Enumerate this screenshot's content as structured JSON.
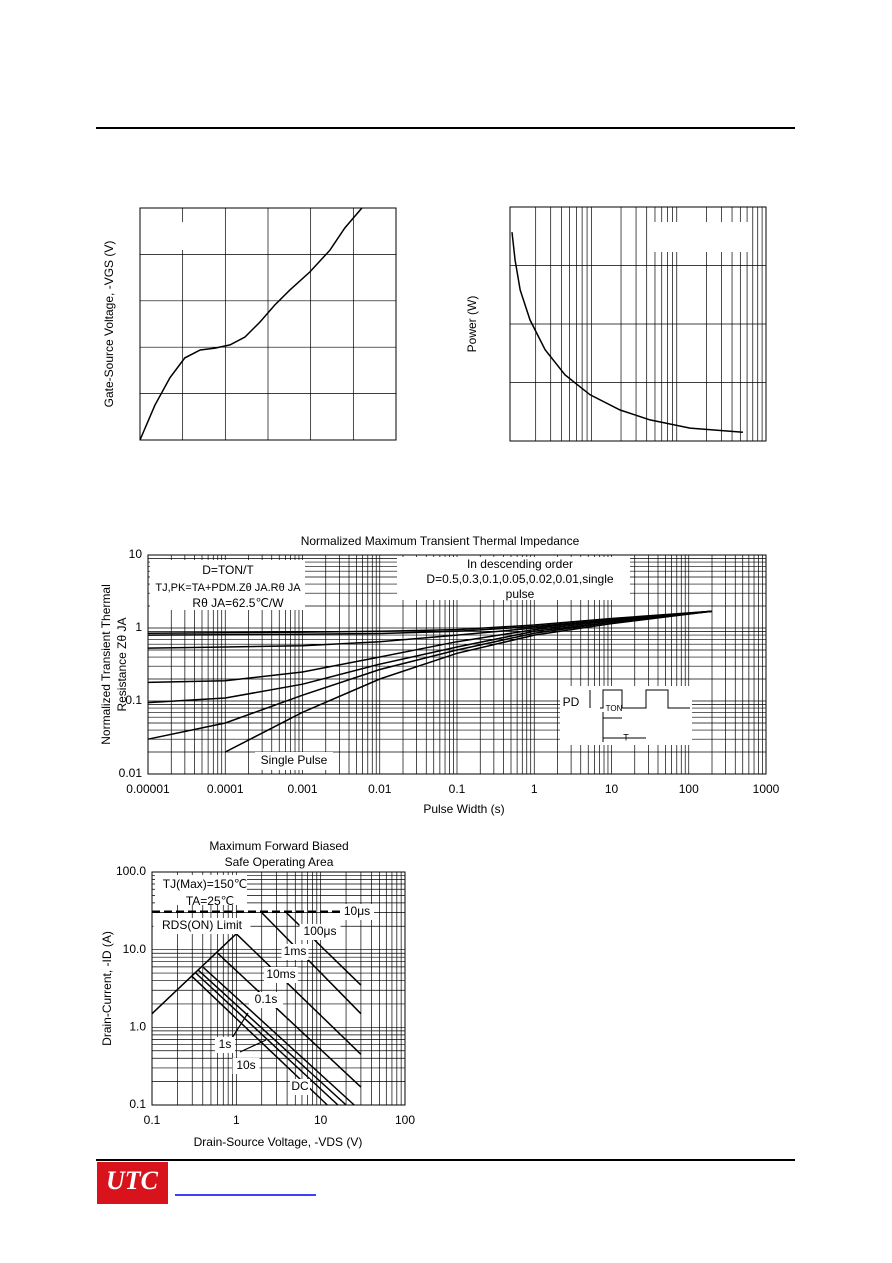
{
  "chart_data": [
    {
      "type": "line",
      "ylabel": "Gate-Source Voltage, -VGS (V)",
      "xlim": [
        0,
        6
      ],
      "ylim": [
        0,
        5
      ],
      "grid": true,
      "color": "#000000",
      "x": [
        0,
        0.35,
        0.7,
        1.05,
        1.41,
        1.76,
        2.11,
        2.46,
        2.81,
        3.16,
        3.51,
        3.98,
        4.45,
        4.8,
        5.2
      ],
      "values": [
        0,
        0.75,
        1.34,
        1.77,
        1.94,
        1.98,
        2.05,
        2.22,
        2.54,
        2.91,
        3.23,
        3.62,
        4.09,
        4.57,
        5
      ]
    },
    {
      "type": "line",
      "ylabel": "Power (W)",
      "xlim": [
        0,
        1
      ],
      "ylim": [
        0,
        4
      ],
      "grid": true,
      "color": "#000000",
      "x": [
        0.008,
        0.02,
        0.04,
        0.078,
        0.137,
        0.215,
        0.313,
        0.43,
        0.547,
        0.703,
        0.91
      ],
      "values": [
        3.57,
        3.09,
        2.58,
        2.07,
        1.56,
        1.13,
        0.79,
        0.53,
        0.36,
        0.22,
        0.15
      ]
    },
    {
      "type": "line",
      "title": "Normalized Maximum Transient Thermal Impedance",
      "xlabel": "Pulse Width (s)",
      "ylabel": [
        "Normalized Transient Thermal",
        "Resistance Zθ JA"
      ],
      "xscale": "log",
      "yscale": "log",
      "xlim": [
        1e-05,
        1000
      ],
      "ylim": [
        0.01,
        10
      ],
      "xticks": [
        1e-05,
        0.0001,
        0.001,
        0.01,
        0.1,
        1,
        10,
        100,
        1000
      ],
      "yticks": [
        0.01,
        0.1,
        1,
        10
      ],
      "grid": true,
      "x": [
        1e-05,
        0.0001,
        0.001,
        0.01,
        0.1,
        1,
        10,
        200
      ],
      "series": [
        {
          "color": "#000000",
          "values": [
            0.85,
            0.86,
            0.88,
            0.9,
            0.95,
            1.1,
            1.35,
            1.7
          ]
        },
        {
          "color": "#000000",
          "values": [
            0.8,
            0.81,
            0.82,
            0.84,
            0.9,
            1.05,
            1.3,
            1.7
          ]
        },
        {
          "color": "#000000",
          "values": [
            0.53,
            0.55,
            0.57,
            0.65,
            0.8,
            1.0,
            1.3,
            1.7
          ]
        },
        {
          "color": "#000000",
          "values": [
            0.18,
            0.19,
            0.25,
            0.4,
            0.65,
            0.95,
            1.25,
            1.7
          ]
        },
        {
          "color": "#000000",
          "values": [
            0.095,
            0.11,
            0.17,
            0.32,
            0.55,
            0.9,
            1.2,
            1.7
          ]
        },
        {
          "color": "#000000",
          "values": [
            0.03,
            0.05,
            0.12,
            0.27,
            0.5,
            0.85,
            1.2,
            1.7
          ]
        },
        {
          "color": "#000000",
          "values": [
            null,
            0.02,
            0.07,
            0.2,
            0.45,
            0.8,
            1.15,
            1.7
          ]
        }
      ],
      "annotations": [
        "D=TON/T",
        "TJ,PK=TA+PDM.Zθ JA.Rθ JA",
        "Rθ JA=62.5℃/W",
        "In descending order",
        "D=0.5,0.3,0.1,0.05,0.02,0.01,single",
        "pulse",
        "Single Pulse",
        "PD",
        "TON",
        "T"
      ]
    },
    {
      "type": "line",
      "title": [
        "Maximum Forward Biased",
        "Safe Operating Area"
      ],
      "xlabel": "Drain-Source Voltage, -VDS (V)",
      "ylabel": "Drain-Current, -ID (A)",
      "xscale": "log",
      "yscale": "log",
      "xlim": [
        0.1,
        100
      ],
      "ylim": [
        0.1,
        100
      ],
      "xticks": [
        0.1,
        1,
        10,
        100
      ],
      "yticks": [
        0.1,
        {
          "value": 1,
          "label": "1.0"
        },
        {
          "value": 10,
          "label": "10.0"
        },
        {
          "value": 100,
          "label": "100.0"
        }
      ],
      "grid": true,
      "series": [
        {
          "name": "RDS(ON) Limit",
          "color": "#000000",
          "x": [
            0.1,
            1
          ],
          "values": [
            1.5,
            16
          ]
        },
        {
          "color": "#000000",
          "style": "dashed",
          "x": [
            0.1,
            30
          ],
          "values": [
            31,
            31
          ]
        },
        {
          "name": "10μs",
          "color": "#000000",
          "x": [
            3.8,
            30
          ],
          "values": [
            31,
            3.5
          ]
        },
        {
          "name": "100μs",
          "color": "#000000",
          "x": [
            2,
            30
          ],
          "values": [
            30,
            1.5
          ]
        },
        {
          "name": "1ms",
          "color": "#000000",
          "x": [
            1,
            30
          ],
          "values": [
            16,
            0.45
          ]
        },
        {
          "name": "10ms",
          "color": "#000000",
          "x": [
            0.6,
            30
          ],
          "values": [
            9,
            0.17
          ]
        },
        {
          "name": "0.1s",
          "color": "#000000",
          "x": [
            0.4,
            25
          ],
          "values": [
            6,
            0.1
          ]
        },
        {
          "name": "1s",
          "color": "#000000",
          "x": [
            0.35,
            20
          ],
          "values": [
            5.5,
            0.1
          ]
        },
        {
          "name": "10s",
          "color": "#000000",
          "x": [
            0.33,
            16
          ],
          "values": [
            5,
            0.1
          ]
        },
        {
          "name": "DC",
          "color": "#000000",
          "x": [
            0.3,
            12
          ],
          "values": [
            4.5,
            0.1
          ]
        }
      ],
      "annotations": [
        "TJ(Max)=150℃",
        "TA=25℃"
      ]
    }
  ],
  "footer": {
    "logo": "UTC"
  }
}
